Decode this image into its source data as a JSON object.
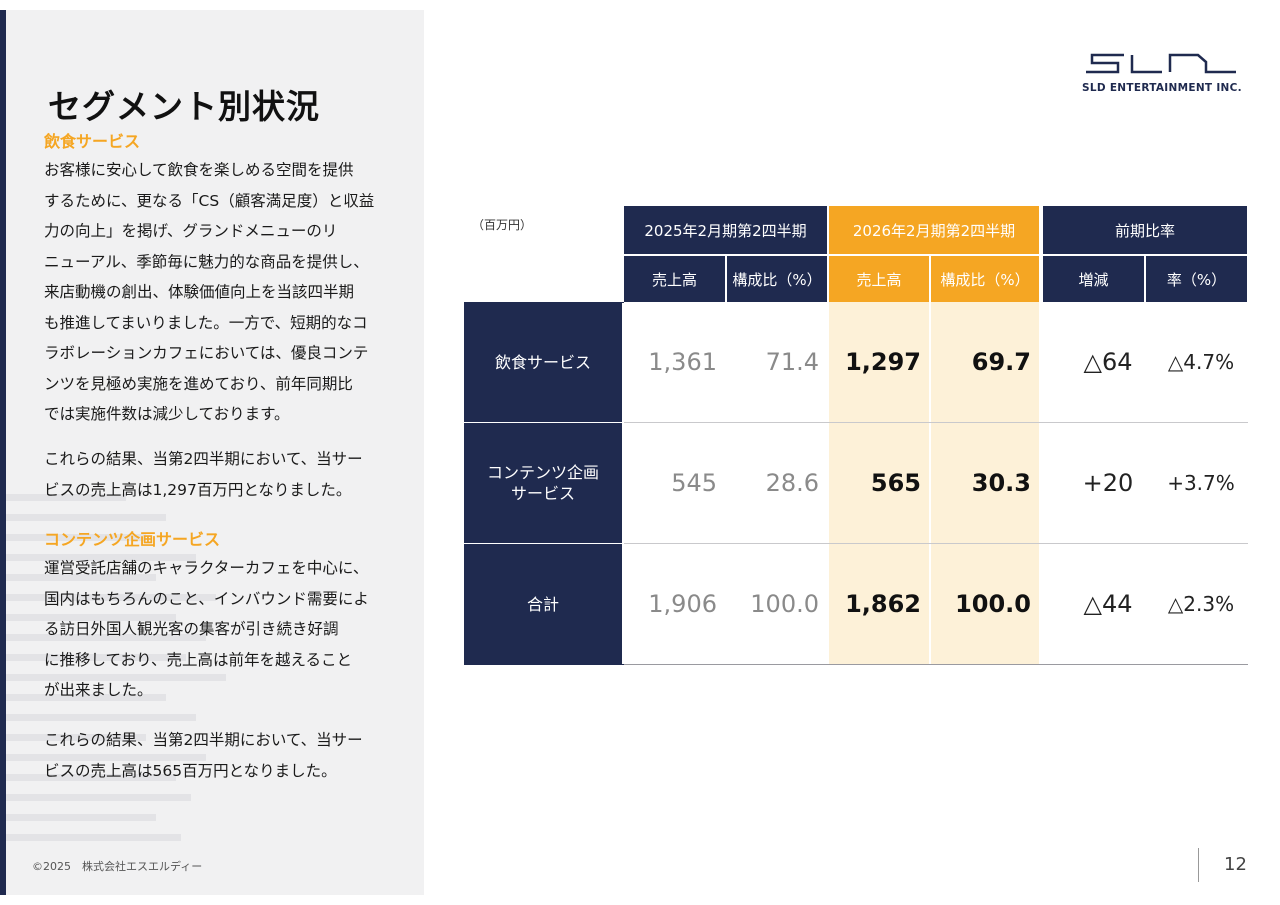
{
  "title": "セグメント別状況",
  "segments": {
    "food": {
      "heading": "飲食サービス",
      "lines": [
        "お客様に安心して飲食を楽しめる空間を提供",
        "するために、更なる「CS（顧客満足度）と収益",
        "力の向上」を掲げ、グランドメニューのリ",
        "ニューアル、季節毎に魅力的な商品を提供し、",
        "来店動機の創出、体験価値向上を当該四半期",
        "も推進してまいりました。一方で、短期的なコ",
        "ラボレーションカフェにおいては、優良コンテ",
        "ンツを見極め実施を進めており、前年同期比",
        "では実施件数は減少しております。"
      ],
      "result_lines": [
        "これらの結果、当第2四半期において、当サー",
        "ビスの売上高は1,297百万円となりました。"
      ]
    },
    "content": {
      "heading": "コンテンツ企画サービス",
      "lines": [
        "運営受託店舗のキャラクターカフェを中心に、",
        "国内はもちろんのこと、インバウンド需要によ",
        "る訪日外国人観光客の集客が引き続き好調",
        "に推移しており、売上高は前年を越えること",
        "が出来ました。"
      ],
      "result_lines": [
        "これらの結果、当第2四半期において、当サー",
        "ビスの売上高は565百万円となりました。"
      ]
    }
  },
  "copyright": "©2025　株式会社エスエルディー",
  "logo": {
    "text": "SLD ENTERTAINMENT INC."
  },
  "page_number": "12",
  "table": {
    "unit": "（百万円）",
    "groups": [
      "2025年2月期第2四半期",
      "2026年2月期第2四半期",
      "前期比率"
    ],
    "subheaders": [
      "売上高",
      "構成比（%）",
      "売上高",
      "構成比（%）",
      "増減",
      "率（%）"
    ],
    "rows": [
      {
        "label": "飲食サービス",
        "prev_sales": "1,361",
        "prev_ratio": "71.4",
        "cur_sales": "1,297",
        "cur_ratio": "69.7",
        "change": "△64",
        "rate": "△4.7%"
      },
      {
        "label_lines": [
          "コンテンツ企画",
          "サービス"
        ],
        "prev_sales": "545",
        "prev_ratio": "28.6",
        "cur_sales": "565",
        "cur_ratio": "30.3",
        "change": "+20",
        "rate": "+3.7%"
      },
      {
        "label": "合計",
        "prev_sales": "1,906",
        "prev_ratio": "100.0",
        "cur_sales": "1,862",
        "cur_ratio": "100.0",
        "change": "△44",
        "rate": "△2.3%"
      }
    ]
  },
  "colors": {
    "navy": "#1f2a4f",
    "accent": "#f5a623",
    "highlight": "#fdf1d8"
  }
}
